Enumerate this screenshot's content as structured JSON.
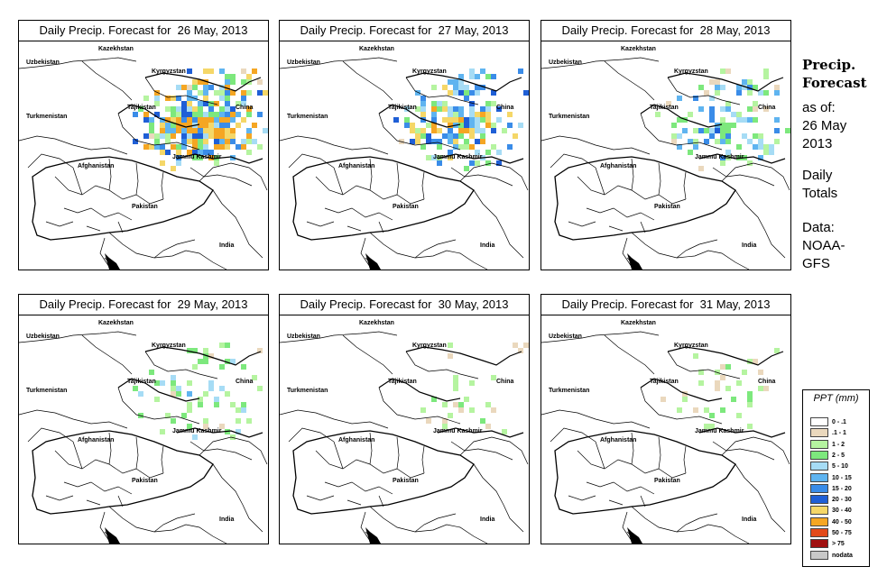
{
  "panels": [
    {
      "title": "Daily Precip. Forecast for  26 May, 2013",
      "intensity": 1.0
    },
    {
      "title": "Daily Precip. Forecast for  27 May, 2013",
      "intensity": 0.8
    },
    {
      "title": "Daily Precip. Forecast for  28 May, 2013",
      "intensity": 0.5
    },
    {
      "title": "Daily Precip. Forecast for  29 May, 2013",
      "intensity": 0.3
    },
    {
      "title": "Daily Precip. Forecast for  30 May, 2013",
      "intensity": 0.12
    },
    {
      "title": "Daily Precip. Forecast for  31 May, 2013",
      "intensity": 0.15
    }
  ],
  "map_labels": {
    "kazakhstan": "Kazekhstan",
    "uzbekistan": "Uzbekistan",
    "kyrgyzstan": "Kyrgyzstan",
    "tajikistan": "Tajikistan",
    "turkmenistan": "Turkmenistan",
    "china": "China",
    "afghanistan": "Afghanistan",
    "jammu_kashmir": "Jammu Kashmir",
    "pakistan": "Pakistan",
    "india": "India"
  },
  "sidebar": {
    "title_line1": "Precip.",
    "title_line2": "Forecast",
    "asof_line1": "as of:",
    "asof_line2": "26 May",
    "asof_line3": "2013",
    "daily_line1": "Daily",
    "daily_line2": "Totals",
    "data_line1": "Data:",
    "data_line2": "NOAA-",
    "data_line3": "GFS"
  },
  "legend": {
    "title": "PPT (mm)",
    "items": [
      {
        "label": "0 - .1",
        "color": "#ffffff"
      },
      {
        "label": ".1 - 1",
        "color": "#ead8bd"
      },
      {
        "label": "1 - 2",
        "color": "#b5f4a0"
      },
      {
        "label": "2 - 5",
        "color": "#7de87d"
      },
      {
        "label": "5 - 10",
        "color": "#a6dcf5"
      },
      {
        "label": "10 - 15",
        "color": "#5fb4f0"
      },
      {
        "label": "15 - 20",
        "color": "#3a8ce8"
      },
      {
        "label": "20 - 30",
        "color": "#1f5fd6"
      },
      {
        "label": "30 - 40",
        "color": "#f5d768"
      },
      {
        "label": "40 - 50",
        "color": "#f5a623"
      },
      {
        "label": "50 - 75",
        "color": "#e24a1a"
      },
      {
        "label": "> 75",
        "color": "#a01010"
      },
      {
        "label": "nodata",
        "color": "#c8c8c8"
      }
    ]
  }
}
